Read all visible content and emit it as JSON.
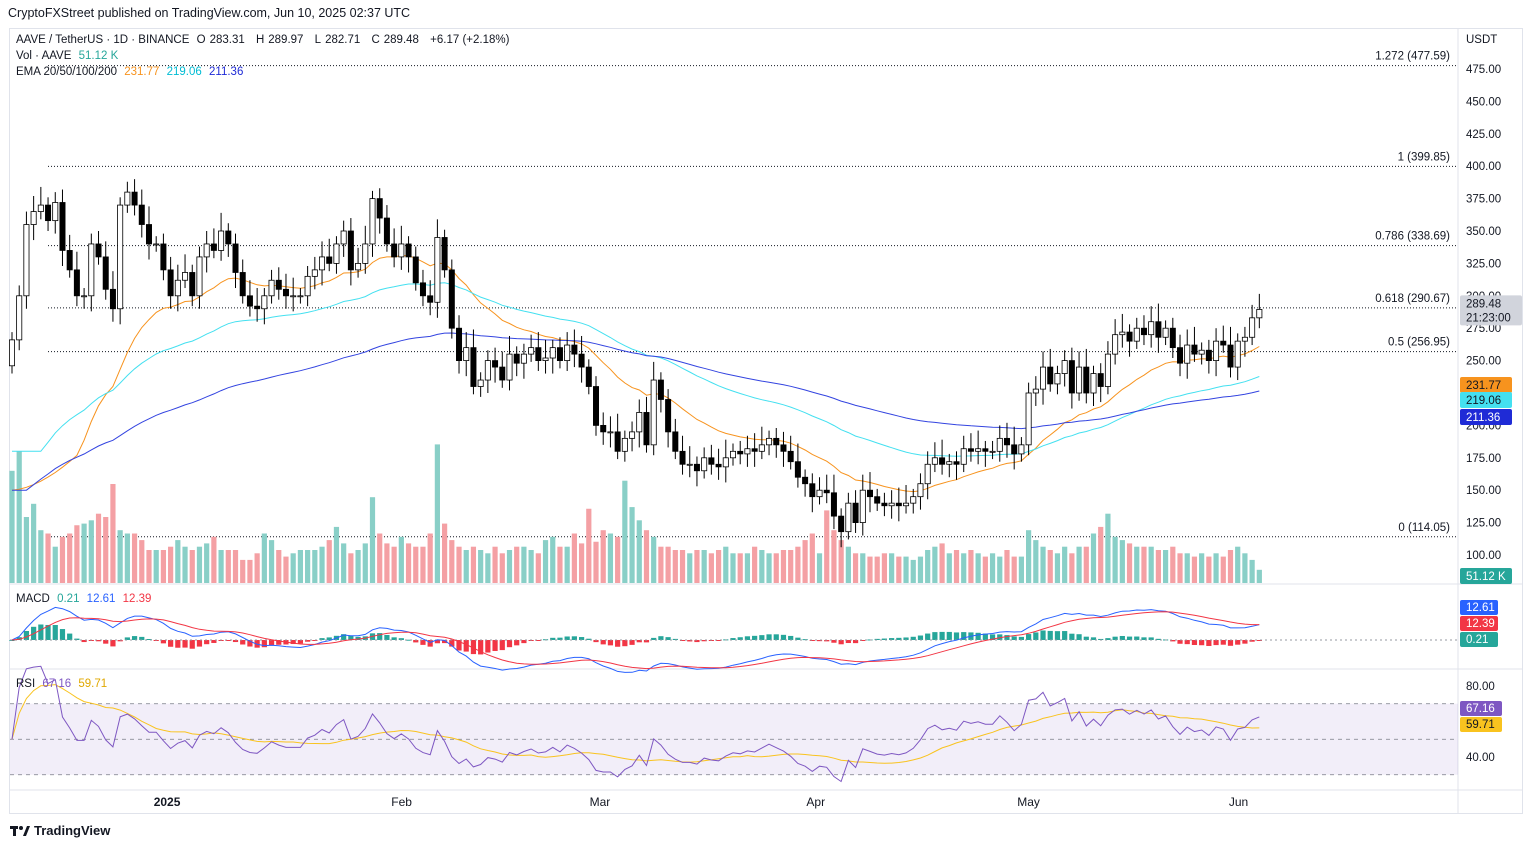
{
  "header": {
    "published": "CryptoFXStreet published on TradingView.com, Jun 10, 2025 02:37 UTC"
  },
  "legend": {
    "symbol": "AAVE / TetherUS · 1D · BINANCE",
    "o_label": "O",
    "o": "283.31",
    "h_label": "H",
    "h": "289.97",
    "l_label": "L",
    "l": "282.71",
    "c_label": "C",
    "c": "289.48",
    "change": "+6.17 (+2.18%)",
    "vol_label": "Vol · AAVE",
    "vol": "51.12 K",
    "ema_label": "EMA 20/50/100/200",
    "ema20": "231.77",
    "ema50": "219.06",
    "ema100": "211.36",
    "macd_label": "MACD",
    "macd_hist": "0.21",
    "macd_line": "12.61",
    "macd_signal": "12.39",
    "rsi_label": "RSI",
    "rsi": "67.16",
    "rsi_ma": "59.71"
  },
  "currency": "USDT",
  "brand": "TradingView",
  "colors": {
    "up": "#ffffff",
    "down": "#000000",
    "vol_up": "#89cfc7",
    "vol_down": "#f4a0a4",
    "ema20": "#f7931e",
    "ema50": "#44e0f0",
    "ema100": "#3344e0",
    "macd": "#2962ff",
    "signal": "#f23645",
    "rsi": "#7e57c2",
    "rsi_ma": "#f9c31f"
  },
  "chart_data": {
    "type": "candlestick",
    "price_axis": {
      "ticks": [
        "475.00",
        "450.00",
        "425.00",
        "400.00",
        "375.00",
        "350.00",
        "325.00",
        "300.00",
        "275.00",
        "250.00",
        "225.00",
        "200.00",
        "175.00",
        "150.00",
        "125.00",
        "100.00"
      ],
      "range": [
        87,
        495
      ]
    },
    "x_labels": [
      "2025",
      "Feb",
      "Mar",
      "Apr",
      "May",
      "Jun"
    ],
    "fib_levels": [
      {
        "label": "1.272 (477.59)",
        "value": 477.59
      },
      {
        "label": "1 (399.85)",
        "value": 399.85
      },
      {
        "label": "0.786 (338.69)",
        "value": 338.69
      },
      {
        "label": "0.618 (290.67)",
        "value": 290.67
      },
      {
        "label": "0.5 (256.95)",
        "value": 256.95
      },
      {
        "label": "0 (114.05)",
        "value": 114.05
      }
    ],
    "price_badges": [
      {
        "value": "289.48",
        "sub": "21:23:00",
        "bg": "#d1d4dc",
        "fg": "#131722"
      },
      {
        "value": "231.77",
        "bg": "#f7931e",
        "fg": "#131722"
      },
      {
        "value": "219.06",
        "bg": "#44e0f0",
        "fg": "#131722"
      },
      {
        "value": "211.36",
        "bg": "#1f2bd6",
        "fg": "#ffffff"
      }
    ],
    "vol_badge": "51.12 K",
    "closes": [
      266,
      300,
      355,
      365,
      370,
      358,
      372,
      335,
      320,
      300,
      300,
      340,
      330,
      305,
      290,
      370,
      380,
      370,
      355,
      340,
      340,
      320,
      300,
      312,
      318,
      300,
      330,
      340,
      335,
      350,
      340,
      318,
      300,
      292,
      290,
      300,
      312,
      305,
      300,
      300,
      300,
      315,
      320,
      330,
      325,
      340,
      350,
      320,
      325,
      340,
      375,
      360,
      340,
      330,
      340,
      330,
      310,
      300,
      295,
      345,
      320,
      275,
      250,
      260,
      230,
      235,
      250,
      245,
      235,
      255,
      248,
      255,
      260,
      250,
      252,
      260,
      250,
      262,
      255,
      245,
      230,
      200,
      195,
      195,
      180,
      190,
      195,
      210,
      185,
      235,
      220,
      195,
      180,
      170,
      170,
      165,
      175,
      170,
      168,
      175,
      180,
      178,
      182,
      180,
      185,
      190,
      185,
      180,
      172,
      160,
      155,
      145,
      150,
      148,
      130,
      118,
      140,
      125,
      150,
      145,
      140,
      138,
      140,
      138,
      140,
      145,
      155,
      170,
      175,
      170,
      172,
      170,
      182,
      180,
      182,
      180,
      180,
      190,
      185,
      178,
      185,
      225,
      228,
      245,
      232,
      240,
      250,
      225,
      245,
      225,
      240,
      230,
      255,
      270,
      272,
      265,
      275,
      270,
      280,
      268,
      275,
      260,
      248,
      262,
      255,
      258,
      250,
      265,
      262,
      245,
      265,
      268,
      283,
      289.48
    ],
    "volume": [
      68,
      80,
      40,
      48,
      32,
      30,
      22,
      28,
      30,
      35,
      36,
      38,
      42,
      40,
      60,
      32,
      30,
      30,
      26,
      20,
      20,
      20,
      22,
      26,
      22,
      20,
      22,
      24,
      28,
      20,
      20,
      20,
      14,
      14,
      18,
      30,
      26,
      20,
      16,
      18,
      20,
      20,
      20,
      22,
      26,
      34,
      24,
      18,
      20,
      24,
      52,
      30,
      24,
      22,
      28,
      24,
      22,
      22,
      30,
      84,
      36,
      26,
      22,
      20,
      22,
      20,
      18,
      22,
      18,
      20,
      22,
      22,
      20,
      18,
      26,
      28,
      22,
      22,
      30,
      24,
      45,
      25,
      32,
      30,
      28,
      62,
      46,
      38,
      32,
      28,
      22,
      22,
      20,
      20,
      18,
      20,
      20,
      18,
      20,
      22,
      18,
      18,
      18,
      22,
      20,
      18,
      18,
      20,
      20,
      22,
      26,
      30,
      18,
      44,
      32,
      26,
      22,
      18,
      18,
      16,
      16,
      18,
      18,
      16,
      16,
      14,
      16,
      20,
      22,
      24,
      18,
      20,
      18,
      20,
      18,
      16,
      18,
      16,
      20,
      16,
      16,
      32,
      26,
      22,
      20,
      18,
      22,
      18,
      22,
      22,
      30,
      34,
      42,
      28,
      26,
      24,
      22,
      22,
      22,
      20,
      20,
      22,
      18,
      18,
      16,
      18,
      16,
      18,
      16,
      20,
      22,
      18,
      14,
      8
    ]
  }
}
